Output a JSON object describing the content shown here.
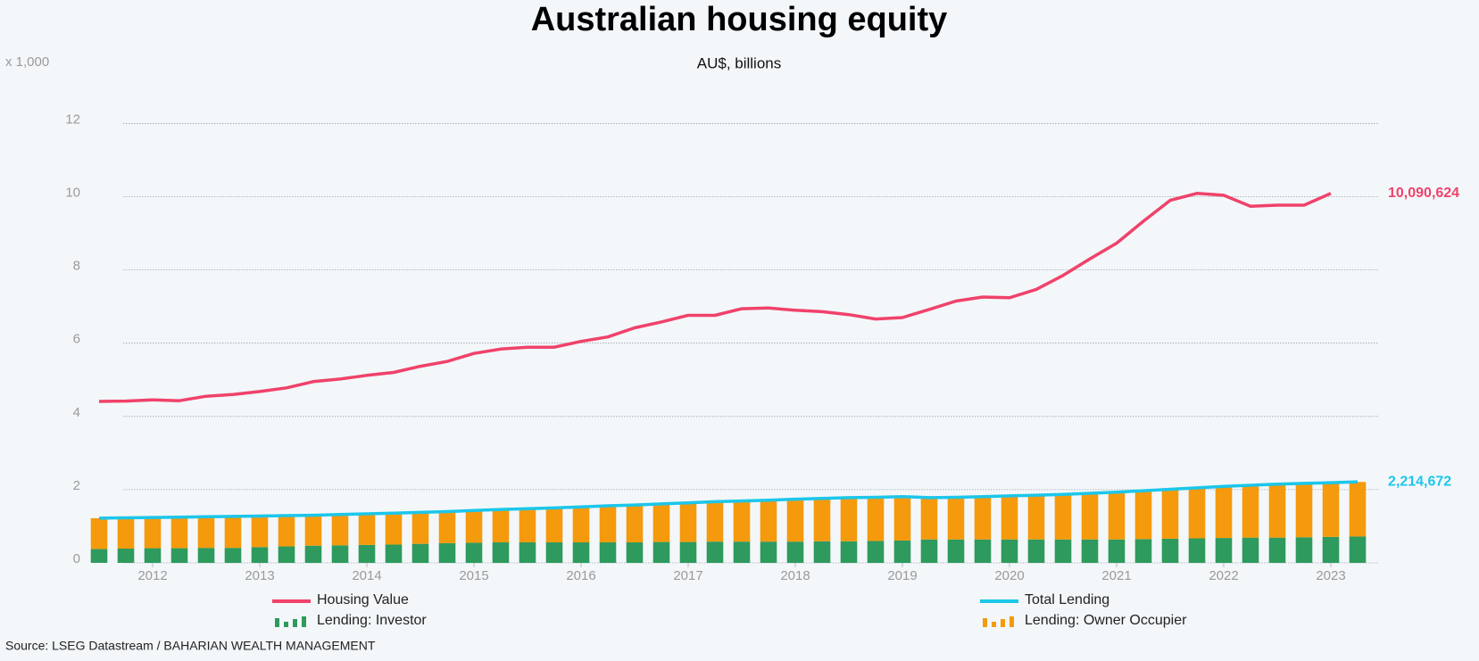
{
  "chart_data": {
    "type": "combo",
    "title": "Australian housing equity",
    "subtitle": "AU$, billions",
    "y_unit_label": "x 1,000",
    "source": "Source: LSEG Datastream / BAHARIAN WEALTH MANAGEMENT",
    "x": [
      2011.5,
      2011.75,
      2012,
      2012.25,
      2012.5,
      2012.75,
      2013,
      2013.25,
      2013.5,
      2013.75,
      2014,
      2014.25,
      2014.5,
      2014.75,
      2015,
      2015.25,
      2015.5,
      2015.75,
      2016,
      2016.25,
      2016.5,
      2016.75,
      2017,
      2017.25,
      2017.5,
      2017.75,
      2018,
      2018.25,
      2018.5,
      2018.75,
      2019,
      2019.25,
      2019.5,
      2019.75,
      2020,
      2020.25,
      2020.5,
      2020.75,
      2021,
      2021.25,
      2021.5,
      2021.75,
      2022,
      2022.25,
      2022.5,
      2022.75,
      2023,
      2023.25
    ],
    "xlim": [
      2011.4,
      2023.45
    ],
    "xticks": [
      2012,
      2013,
      2014,
      2015,
      2016,
      2017,
      2018,
      2019,
      2020,
      2021,
      2022,
      2023
    ],
    "ylim": [
      0,
      12.4
    ],
    "yticks": [
      0,
      2,
      4,
      6,
      8,
      10,
      12
    ],
    "grid": true,
    "series": [
      {
        "name": "Housing Value",
        "type": "line",
        "color": "#f0426a",
        "values": [
          4.41,
          4.42,
          4.45,
          4.43,
          4.55,
          4.6,
          4.68,
          4.78,
          4.95,
          5.02,
          5.12,
          5.2,
          5.37,
          5.5,
          5.72,
          5.84,
          5.89,
          5.89,
          6.05,
          6.17,
          6.42,
          6.58,
          6.76,
          6.76,
          6.94,
          6.96,
          6.9,
          6.86,
          6.78,
          6.66,
          6.7,
          6.92,
          7.15,
          7.26,
          7.24,
          7.47,
          7.85,
          8.3,
          8.73,
          9.33,
          9.9,
          10.09,
          10.04,
          9.74,
          9.77,
          9.77,
          10.090624,
          null
        ],
        "value_labels": [
          null,
          null,
          null,
          null,
          null,
          null,
          null,
          null,
          null,
          null,
          null,
          null,
          null,
          null,
          null,
          null,
          null,
          null,
          null,
          null,
          null,
          null,
          null,
          null,
          null,
          null,
          null,
          null,
          null,
          null,
          null,
          null,
          null,
          null,
          null,
          null,
          null,
          null,
          null,
          null,
          null,
          null,
          null,
          null,
          null,
          null,
          "10,090,624",
          null
        ]
      },
      {
        "name": "Lending: Investor",
        "type": "bar",
        "color": "#2e9a5e",
        "values": [
          0.38,
          0.39,
          0.4,
          0.4,
          0.41,
          0.41,
          0.43,
          0.45,
          0.47,
          0.48,
          0.49,
          0.5,
          0.52,
          0.54,
          0.55,
          0.56,
          0.56,
          0.56,
          0.56,
          0.56,
          0.56,
          0.57,
          0.57,
          0.58,
          0.58,
          0.58,
          0.58,
          0.59,
          0.59,
          0.6,
          0.61,
          0.64,
          0.64,
          0.64,
          0.64,
          0.64,
          0.64,
          0.64,
          0.64,
          0.65,
          0.66,
          0.67,
          0.68,
          0.69,
          0.69,
          0.7,
          0.71,
          0.72
        ]
      },
      {
        "name": "Total Lending",
        "type": "line",
        "color": "#1cc6ea",
        "values": [
          1.22,
          1.23,
          1.24,
          1.25,
          1.26,
          1.27,
          1.28,
          1.29,
          1.3,
          1.32,
          1.34,
          1.36,
          1.38,
          1.4,
          1.43,
          1.46,
          1.48,
          1.5,
          1.53,
          1.56,
          1.58,
          1.61,
          1.64,
          1.67,
          1.69,
          1.71,
          1.74,
          1.76,
          1.78,
          1.79,
          1.81,
          1.78,
          1.79,
          1.81,
          1.83,
          1.85,
          1.87,
          1.9,
          1.93,
          1.97,
          2.01,
          2.05,
          2.09,
          2.12,
          2.15,
          2.17,
          2.19,
          2.214672
        ],
        "value_labels": [
          null,
          null,
          null,
          null,
          null,
          null,
          null,
          null,
          null,
          null,
          null,
          null,
          null,
          null,
          null,
          null,
          null,
          null,
          null,
          null,
          null,
          null,
          null,
          null,
          null,
          null,
          null,
          null,
          null,
          null,
          null,
          null,
          null,
          null,
          null,
          null,
          null,
          null,
          null,
          null,
          null,
          null,
          null,
          null,
          null,
          null,
          null,
          "2,214,672"
        ]
      },
      {
        "name": "Lending: Owner Occupier",
        "type": "bar",
        "color": "#f59a0c",
        "values": [
          0.84,
          0.84,
          0.84,
          0.85,
          0.85,
          0.86,
          0.85,
          0.84,
          0.83,
          0.84,
          0.85,
          0.86,
          0.86,
          0.86,
          0.88,
          0.9,
          0.92,
          0.94,
          0.97,
          1.0,
          1.02,
          1.04,
          1.07,
          1.09,
          1.11,
          1.13,
          1.16,
          1.17,
          1.19,
          1.19,
          1.2,
          1.14,
          1.15,
          1.17,
          1.19,
          1.21,
          1.23,
          1.26,
          1.29,
          1.32,
          1.35,
          1.38,
          1.41,
          1.43,
          1.46,
          1.47,
          1.48,
          1.49
        ]
      }
    ]
  }
}
